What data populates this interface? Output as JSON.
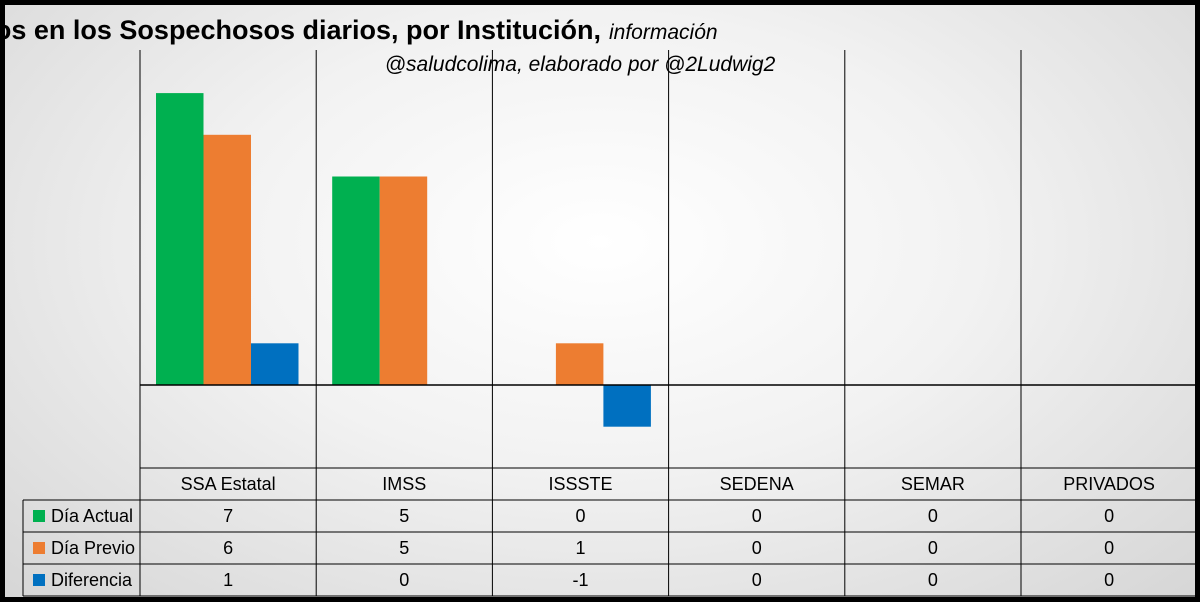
{
  "chart_data": {
    "type": "bar",
    "title": "Cambios en los Sospechosos diarios, por Institución,",
    "title_suffix": "información",
    "subtitle": "@saludcolima, elaborado por @2Ludwig2",
    "categories": [
      "SSA Estatal",
      "IMSS",
      "ISSSTE",
      "SEDENA",
      "SEMAR",
      "PRIVADOS"
    ],
    "series": [
      {
        "name": "Día Actual",
        "values": [
          7,
          5,
          0,
          0,
          0,
          0
        ],
        "color": "#00b050"
      },
      {
        "name": "Día Previo",
        "values": [
          6,
          5,
          1,
          0,
          0,
          0
        ],
        "color": "#ed7d31"
      },
      {
        "name": "Diferencia",
        "values": [
          1,
          0,
          -1,
          0,
          0,
          0
        ],
        "color": "#0070c0"
      }
    ],
    "ylim": [
      -2,
      7.3
    ],
    "grid": "vertical category separators",
    "legend": "data table below chart"
  }
}
